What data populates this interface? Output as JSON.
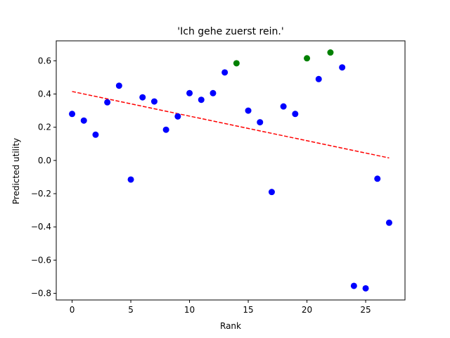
{
  "chart_data": {
    "type": "scatter",
    "title": "'Ich gehe zuerst rein.'",
    "xlabel": "Rank",
    "ylabel": "Predicted utility",
    "xlim": [
      -1.35,
      28.35
    ],
    "ylim": [
      -0.84,
      0.72
    ],
    "xticks": [
      0,
      5,
      10,
      15,
      20,
      25
    ],
    "yticks": [
      -0.8,
      -0.6,
      -0.4,
      -0.2,
      0.0,
      0.2,
      0.4,
      0.6
    ],
    "xtick_labels": [
      "0",
      "5",
      "10",
      "15",
      "20",
      "25"
    ],
    "ytick_labels": [
      "−0.8",
      "−0.6",
      "−0.4",
      "−0.2",
      "0.0",
      "0.2",
      "0.4",
      "0.6"
    ],
    "grid": false,
    "legend": "none",
    "colors": {
      "normal": "#0000ff",
      "highlight": "#008000",
      "trend": "#ff0000"
    },
    "points": [
      {
        "x": 0,
        "y": 0.28,
        "group": "normal"
      },
      {
        "x": 1,
        "y": 0.24,
        "group": "normal"
      },
      {
        "x": 2,
        "y": 0.155,
        "group": "normal"
      },
      {
        "x": 3,
        "y": 0.35,
        "group": "normal"
      },
      {
        "x": 4,
        "y": 0.45,
        "group": "normal"
      },
      {
        "x": 5,
        "y": -0.115,
        "group": "normal"
      },
      {
        "x": 6,
        "y": 0.38,
        "group": "normal"
      },
      {
        "x": 7,
        "y": 0.355,
        "group": "normal"
      },
      {
        "x": 8,
        "y": 0.185,
        "group": "normal"
      },
      {
        "x": 9,
        "y": 0.265,
        "group": "normal"
      },
      {
        "x": 10,
        "y": 0.405,
        "group": "normal"
      },
      {
        "x": 11,
        "y": 0.365,
        "group": "normal"
      },
      {
        "x": 12,
        "y": 0.405,
        "group": "normal"
      },
      {
        "x": 13,
        "y": 0.53,
        "group": "normal"
      },
      {
        "x": 14,
        "y": 0.585,
        "group": "highlight"
      },
      {
        "x": 15,
        "y": 0.3,
        "group": "normal"
      },
      {
        "x": 16,
        "y": 0.23,
        "group": "normal"
      },
      {
        "x": 17,
        "y": -0.19,
        "group": "normal"
      },
      {
        "x": 18,
        "y": 0.325,
        "group": "normal"
      },
      {
        "x": 19,
        "y": 0.28,
        "group": "normal"
      },
      {
        "x": 20,
        "y": 0.615,
        "group": "highlight"
      },
      {
        "x": 21,
        "y": 0.49,
        "group": "normal"
      },
      {
        "x": 22,
        "y": 0.65,
        "group": "highlight"
      },
      {
        "x": 23,
        "y": 0.56,
        "group": "normal"
      },
      {
        "x": 24,
        "y": -0.755,
        "group": "normal"
      },
      {
        "x": 25,
        "y": -0.77,
        "group": "normal"
      },
      {
        "x": 26,
        "y": -0.11,
        "group": "normal"
      },
      {
        "x": 27,
        "y": -0.375,
        "group": "normal"
      }
    ],
    "trendline": {
      "x": [
        0,
        27
      ],
      "y": [
        0.415,
        0.015
      ],
      "style": "dashed"
    }
  }
}
